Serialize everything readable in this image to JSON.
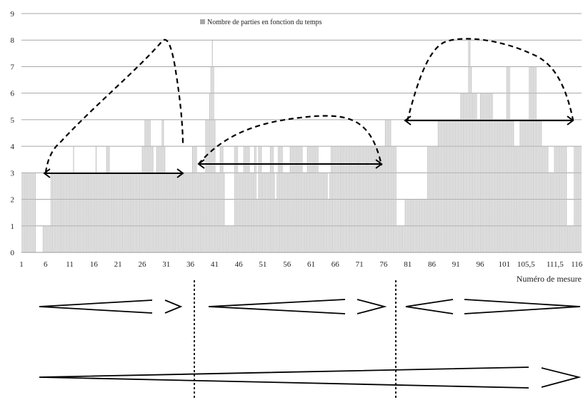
{
  "chart_data": {
    "type": "bar",
    "title": "",
    "legend": "Nombre de parties en fonction du temps",
    "legend_position": "top-center",
    "xlabel": "Numéro de mesure",
    "ylabel": "",
    "ylim": [
      0,
      9
    ],
    "yticks": [
      "0",
      "1",
      "2",
      "3",
      "4",
      "5",
      "6",
      "7",
      "8",
      "9"
    ],
    "xticks": [
      "1",
      "6",
      "11",
      "16",
      "21",
      "26",
      "31",
      "36",
      "41",
      "46",
      "51",
      "56",
      "61",
      "66",
      "71",
      "76",
      "81",
      "86",
      "91",
      "96",
      "101",
      "105,5",
      "111,5",
      "116"
    ],
    "grid": "horizontal",
    "bar_color": "#bdbdbd",
    "x_start": 1,
    "x_end": 117,
    "series": [
      {
        "values": [
          3,
          3,
          3,
          3,
          3,
          3,
          3,
          3,
          3,
          3,
          3,
          0,
          0,
          0,
          0,
          0,
          1,
          1,
          1,
          1,
          1,
          1,
          3,
          3,
          3,
          3,
          3,
          3,
          3,
          3,
          3,
          3,
          3,
          3,
          3,
          3,
          3,
          3,
          3,
          4,
          3,
          3,
          3,
          3,
          3,
          3,
          3,
          3,
          3,
          3,
          3,
          3,
          3,
          3,
          3,
          3,
          4,
          3,
          3,
          3,
          3,
          3,
          3,
          3,
          4,
          4,
          4,
          3,
          3,
          3,
          3,
          3,
          3,
          3,
          3,
          3,
          3,
          3,
          3,
          3,
          3,
          3,
          3,
          3,
          3,
          3,
          3,
          3,
          3,
          3,
          3,
          4,
          4,
          5,
          5,
          5,
          5,
          5,
          4,
          4,
          3,
          3,
          4,
          4,
          4,
          4,
          5,
          5,
          4,
          3,
          3,
          3,
          3,
          3,
          3,
          3,
          3,
          3,
          3,
          3,
          3,
          3,
          3,
          3,
          3,
          3,
          3,
          3,
          3,
          4,
          4,
          4,
          4,
          3,
          3,
          3,
          3,
          3,
          3,
          5,
          5,
          5,
          6,
          7,
          8,
          7,
          5,
          3,
          3,
          3,
          4,
          4,
          4,
          3,
          1,
          1,
          1,
          1,
          1,
          1,
          1,
          4,
          4,
          4,
          3,
          3,
          3,
          3,
          4,
          4,
          4,
          4,
          4,
          3,
          3,
          3,
          4,
          4,
          2,
          4,
          4,
          4,
          3,
          3,
          3,
          3,
          3,
          3,
          4,
          4,
          4,
          3,
          2,
          3,
          4,
          4,
          4,
          4,
          3,
          3,
          3,
          3,
          3,
          4,
          4,
          4,
          4,
          4,
          4,
          4,
          4,
          4,
          4,
          3,
          3,
          3,
          4,
          4,
          4,
          4,
          4,
          4,
          4,
          4,
          4,
          3,
          3,
          3,
          3,
          3,
          3,
          3,
          2,
          3,
          4,
          4,
          4,
          4,
          4,
          4,
          4,
          4,
          4,
          4,
          4,
          4,
          4,
          4,
          4,
          4,
          4,
          4,
          4,
          4,
          4,
          4,
          4,
          4,
          4,
          4,
          4,
          4,
          4,
          4,
          4,
          4,
          4,
          4,
          4,
          4,
          4,
          4,
          4,
          4,
          4,
          5,
          5,
          5,
          5,
          5,
          4,
          4,
          4,
          4,
          1,
          1,
          1,
          1,
          1,
          1,
          2,
          2,
          2,
          2,
          2,
          2,
          2,
          2,
          2,
          2,
          2,
          2,
          2,
          2,
          2,
          2,
          2,
          4,
          4,
          4,
          4,
          4,
          4,
          4,
          4,
          5,
          5,
          5,
          5,
          5,
          5,
          5,
          5,
          5,
          5,
          5,
          5,
          5,
          5,
          5,
          5,
          5,
          6,
          6,
          6,
          6,
          6,
          6,
          8,
          8,
          7,
          6,
          6,
          6,
          6,
          5,
          5,
          6,
          6,
          6,
          6,
          6,
          6,
          6,
          6,
          6,
          6,
          5,
          5,
          5,
          5,
          5,
          5,
          5,
          5,
          5,
          5,
          7,
          7,
          7,
          5,
          5,
          5,
          4,
          4,
          4,
          4,
          5,
          5,
          5,
          5,
          5,
          5,
          5,
          7,
          7,
          7,
          7,
          7,
          7,
          5,
          5,
          5,
          5,
          4,
          4,
          4,
          4,
          4,
          3,
          3,
          3,
          3,
          4,
          4,
          4,
          4,
          4,
          4,
          4,
          4,
          4,
          4,
          1,
          1,
          1,
          1,
          1,
          4,
          4,
          4,
          4,
          4,
          4
        ]
      }
    ]
  }
}
